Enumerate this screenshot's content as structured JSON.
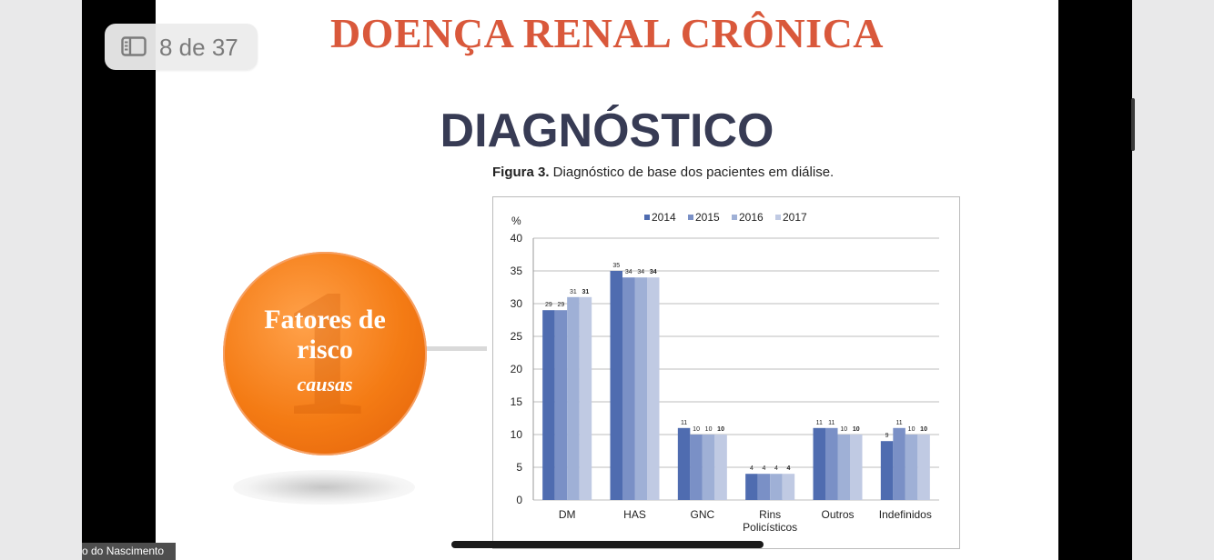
{
  "slide": {
    "title": "DOENÇA RENAL CRÔNICA",
    "subtitle": "DIAGNÓSTICO",
    "figure_caption_bold": "Figura 3.",
    "figure_caption_text": " Diagnóstico de base dos pacientes em diálise.",
    "circle": {
      "number": "1",
      "line1": "Fatores de",
      "line2": "risco",
      "line3": "causas",
      "color": "#f47b14"
    }
  },
  "viewer": {
    "page_indicator": "8 de 37",
    "participant_name": "o do Nascimento",
    "page_icon": "sidebar-icon"
  },
  "chart_data": {
    "type": "bar",
    "ylabel": "%",
    "ylim": [
      0,
      40
    ],
    "yticks": [
      0,
      5,
      10,
      15,
      20,
      25,
      30,
      35,
      40
    ],
    "legend_position": "top-center",
    "grid": true,
    "categories": [
      "DM",
      "HAS",
      "GNC",
      "Rins|Policísticos",
      "Outros",
      "Indefinidos"
    ],
    "series": [
      {
        "name": "2014",
        "color": "#4f6cb0",
        "values": [
          29,
          35,
          11,
          4,
          11,
          9
        ]
      },
      {
        "name": "2015",
        "color": "#7a90c6",
        "values": [
          29,
          34,
          10,
          4,
          11,
          11
        ]
      },
      {
        "name": "2016",
        "color": "#9fb0d6",
        "values": [
          31,
          34,
          10,
          4,
          10,
          10
        ]
      },
      {
        "name": "2017",
        "color": "#c0cae3",
        "values": [
          31,
          34,
          10,
          4,
          10,
          10
        ]
      }
    ]
  }
}
